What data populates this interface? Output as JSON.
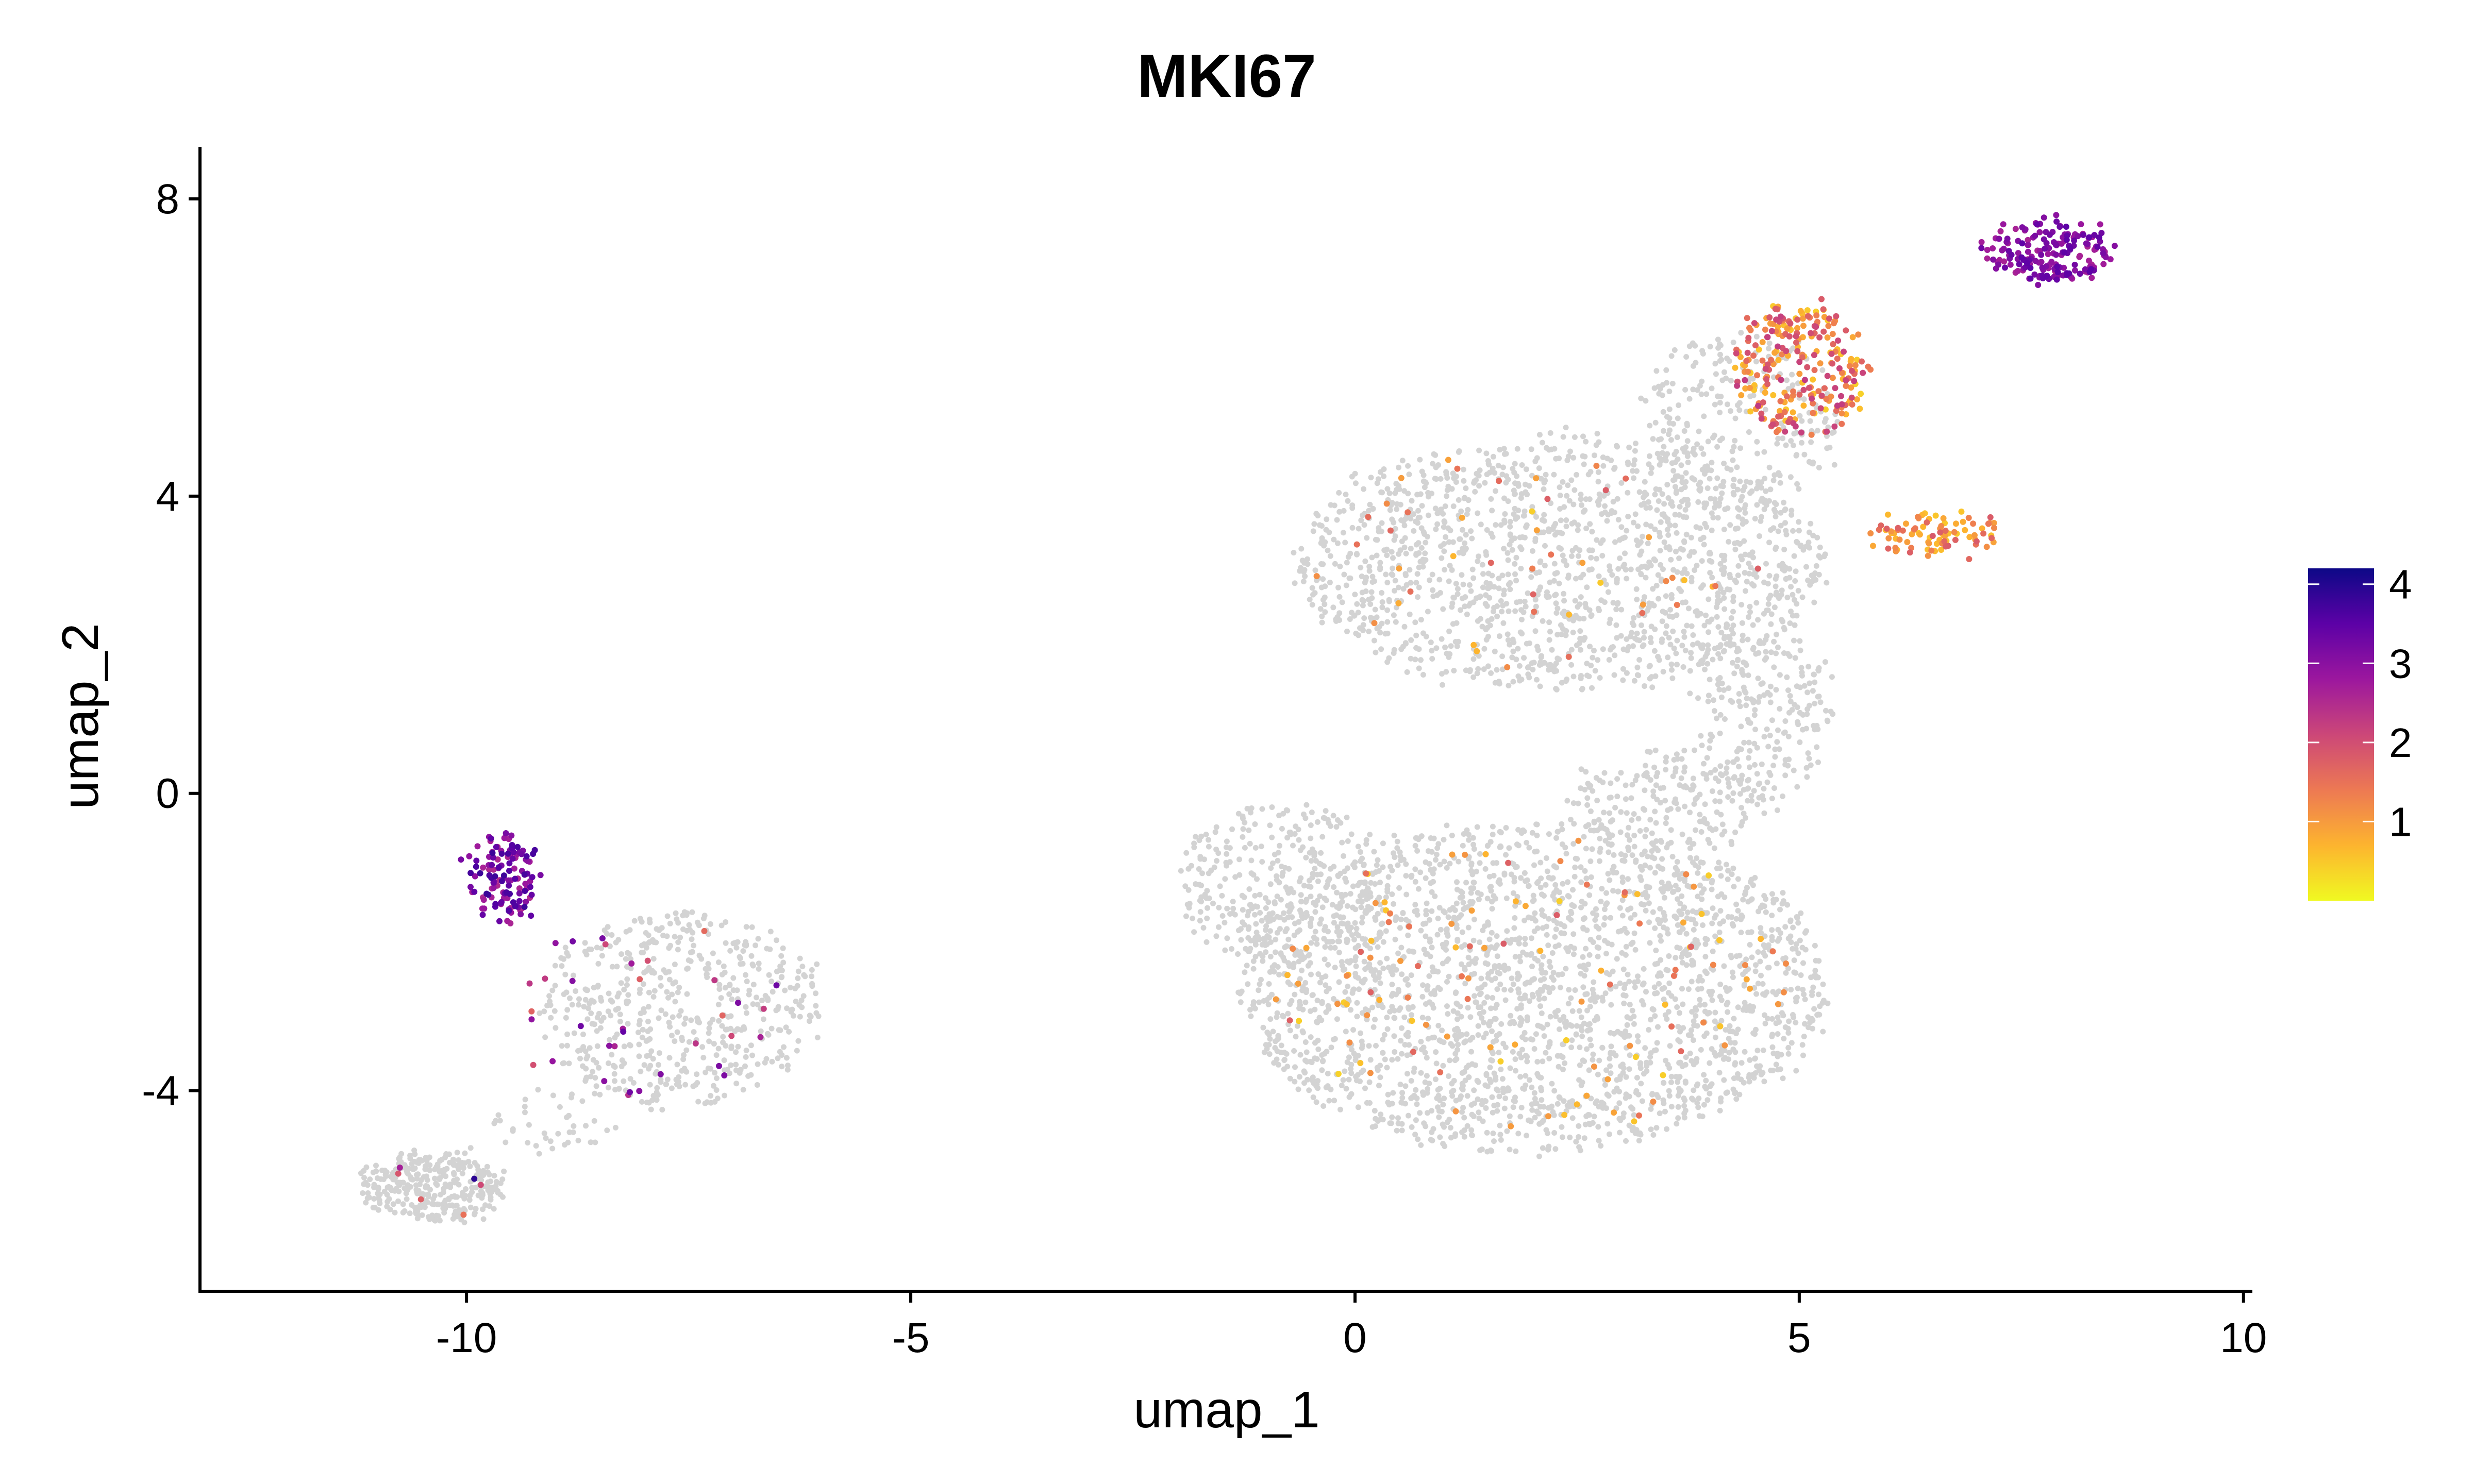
{
  "chart_data": {
    "type": "scatter",
    "title": "MKI67",
    "xlabel": "umap_1",
    "ylabel": "umap_2",
    "xlim": [
      -13,
      10.1
    ],
    "ylim": [
      -6.7,
      8.7
    ],
    "xticks": [
      -10,
      -5,
      0,
      5,
      10
    ],
    "xtick_labels": [
      "-10",
      "-5",
      "0",
      "5",
      "10"
    ],
    "yticks": [
      -4,
      0,
      4,
      8
    ],
    "ytick_labels": [
      "-4",
      "0",
      "4",
      "8"
    ],
    "background_color": "#d3d3d3",
    "colorscale": {
      "name": "plasma (reversed)",
      "min": 0,
      "max": 4.2,
      "ticks": [
        1,
        2,
        3,
        4
      ],
      "tick_labels": [
        "1",
        "2",
        "3",
        "4"
      ],
      "colors": [
        "#f0f921",
        "#fdb42f",
        "#ed7953",
        "#cc4778",
        "#9c179e",
        "#5c01a6",
        "#0d0887"
      ]
    },
    "background_regions": [
      {
        "cx": 2.3,
        "cy": 3.1,
        "rx": 3.0,
        "ry": 1.7,
        "n": 1500
      },
      {
        "cx": 4.3,
        "cy": 5.0,
        "rx": 1.1,
        "ry": 1.2,
        "n": 260
      },
      {
        "cx": 4.6,
        "cy": 1.0,
        "rx": 0.8,
        "ry": 1.2,
        "n": 220
      },
      {
        "cx": 2.0,
        "cy": -2.6,
        "rx": 3.3,
        "ry": 2.2,
        "n": 2300
      },
      {
        "cx": -0.8,
        "cy": -1.2,
        "rx": 1.2,
        "ry": 1.1,
        "n": 350
      },
      {
        "cx": 3.5,
        "cy": -0.1,
        "rx": 1.1,
        "ry": 0.7,
        "n": 200
      },
      {
        "cx": -7.6,
        "cy": -2.9,
        "rx": 1.6,
        "ry": 1.3,
        "n": 550
      },
      {
        "cx": -10.4,
        "cy": -5.3,
        "rx": 0.8,
        "ry": 0.45,
        "n": 330
      },
      {
        "cx": -9.0,
        "cy": -4.4,
        "rx": 0.7,
        "ry": 0.4,
        "n": 40
      }
    ],
    "expression_clusters": [
      {
        "cx": 7.8,
        "cy": 7.3,
        "rx": 0.75,
        "ry": 0.4,
        "n": 190,
        "vmin": 2.6,
        "vmax": 3.5
      },
      {
        "cx": 5.0,
        "cy": 5.7,
        "rx": 0.75,
        "ry": 0.9,
        "n": 260,
        "vmin": 0.4,
        "vmax": 2.3
      },
      {
        "cx": 6.5,
        "cy": 3.5,
        "rx": 0.8,
        "ry": 0.25,
        "n": 90,
        "vmin": 0.5,
        "vmax": 1.9
      },
      {
        "cx": -9.6,
        "cy": -1.1,
        "rx": 0.35,
        "ry": 0.6,
        "n": 130,
        "vmin": 2.5,
        "vmax": 3.8
      },
      {
        "cx": 2.0,
        "cy": -2.6,
        "rx": 3.0,
        "ry": 2.0,
        "n": 110,
        "vmin": 0.4,
        "vmax": 1.8
      },
      {
        "cx": 2.3,
        "cy": 3.2,
        "rx": 2.8,
        "ry": 1.5,
        "n": 45,
        "vmin": 0.4,
        "vmax": 1.8
      },
      {
        "cx": -8.0,
        "cy": -2.9,
        "rx": 1.5,
        "ry": 1.2,
        "n": 35,
        "vmin": 1.5,
        "vmax": 3.5
      },
      {
        "cx": -10.3,
        "cy": -5.3,
        "rx": 0.7,
        "ry": 0.4,
        "n": 6,
        "vmin": 1.2,
        "vmax": 4.0
      }
    ]
  }
}
